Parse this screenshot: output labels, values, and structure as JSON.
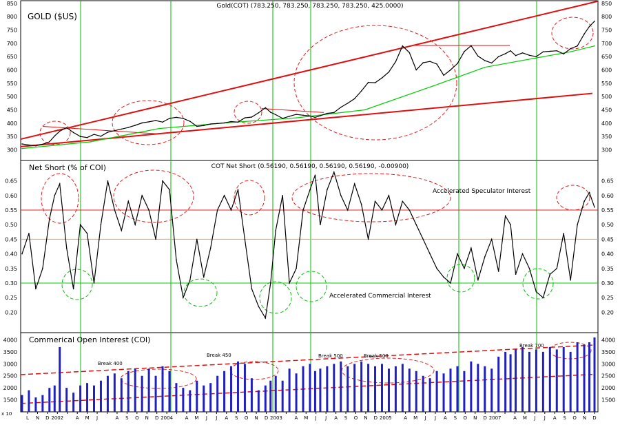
{
  "chart_data": [
    {
      "type": "line",
      "panel": "gold",
      "header": "Gold(COT) (783.250, 783.250, 783.250, 783.250, 425.0000)",
      "title": "GOLD ($US)",
      "ylim": [
        260,
        860
      ],
      "yticks": [
        300,
        350,
        400,
        450,
        500,
        550,
        600,
        650,
        700,
        750,
        800,
        850
      ],
      "series": [
        {
          "name": "",
          "color": "#000000",
          "x": [
            0,
            4,
            8,
            12,
            16,
            19,
            22,
            26,
            30,
            34,
            38,
            42,
            46,
            50,
            54,
            58,
            62,
            66,
            70,
            74,
            78,
            82,
            86,
            90,
            94,
            98,
            102,
            106,
            110,
            114,
            118,
            122,
            126,
            130,
            134,
            138,
            142,
            145,
            148,
            152,
            156,
            160,
            164,
            168,
            171,
            174,
            178,
            182,
            186,
            190,
            194,
            198,
            202,
            206,
            210,
            214,
            218,
            222,
            226,
            230,
            234,
            238,
            242,
            246,
            250,
            254,
            258,
            262,
            266,
            270,
            274,
            278,
            282,
            285,
            288,
            292,
            296,
            300,
            304,
            308,
            312,
            316,
            320,
            324,
            328,
            331,
            334
          ],
          "values": [
            322,
            318,
            315,
            321,
            330,
            352,
            370,
            383,
            365,
            350,
            346,
            358,
            351,
            366,
            372,
            378,
            384,
            392,
            401,
            405,
            410,
            404,
            418,
            422,
            418,
            407,
            388,
            391,
            397,
            399,
            401,
            406,
            404,
            420,
            423,
            439,
            458,
            441,
            432,
            418,
            426,
            433,
            430,
            427,
            422,
            428,
            437,
            440,
            460,
            475,
            492,
            521,
            553,
            552,
            570,
            592,
            631,
            690,
            665,
            600,
            627,
            632,
            622,
            580,
            600,
            624,
            669,
            691,
            652,
            635,
            626,
            650,
            661,
            672,
            654,
            664,
            655,
            650,
            668,
            670,
            672,
            660,
            680,
            690,
            735,
            763,
            783
          ]
        },
        {
          "name": "",
          "color": "#00cc00",
          "x": [
            0,
            40,
            80,
            120,
            160,
            200,
            240,
            270,
            300,
            320,
            334
          ],
          "values": [
            305,
            330,
            380,
            402,
            420,
            450,
            540,
            610,
            645,
            668,
            690
          ]
        }
      ]
    },
    {
      "type": "line",
      "panel": "net-short",
      "header": "COT Net Short (0.56190, 0.56190, 0.56190, 0.56190, -0.00900)",
      "title": "Net Short (% of COI)",
      "ylim": [
        0.13,
        0.72
      ],
      "yticks": [
        0.2,
        0.25,
        0.3,
        0.35,
        0.4,
        0.45,
        0.5,
        0.55,
        0.6,
        0.65
      ],
      "annotations": [
        "Accelerated Speculator Interest",
        "Accelerated Commercial Interest"
      ],
      "series": [
        {
          "name": "",
          "color": "#000000",
          "x": [
            0,
            4,
            8,
            12,
            16,
            19,
            22,
            26,
            30,
            34,
            38,
            42,
            46,
            50,
            54,
            58,
            62,
            66,
            70,
            74,
            78,
            82,
            86,
            90,
            94,
            98,
            102,
            106,
            110,
            114,
            118,
            122,
            126,
            130,
            134,
            138,
            142,
            145,
            148,
            152,
            156,
            160,
            164,
            168,
            171,
            174,
            178,
            182,
            186,
            190,
            194,
            198,
            202,
            206,
            210,
            214,
            218,
            222,
            226,
            230,
            234,
            238,
            242,
            246,
            250,
            254,
            258,
            262,
            266,
            270,
            274,
            278,
            282,
            285,
            288,
            292,
            296,
            300,
            304,
            308,
            312,
            316,
            320,
            324,
            328,
            331,
            334
          ],
          "values": [
            0.4,
            0.47,
            0.28,
            0.35,
            0.52,
            0.6,
            0.64,
            0.42,
            0.28,
            0.5,
            0.47,
            0.3,
            0.5,
            0.65,
            0.55,
            0.48,
            0.58,
            0.5,
            0.6,
            0.55,
            0.45,
            0.65,
            0.62,
            0.38,
            0.25,
            0.31,
            0.45,
            0.32,
            0.42,
            0.55,
            0.6,
            0.55,
            0.62,
            0.45,
            0.28,
            0.22,
            0.18,
            0.3,
            0.48,
            0.6,
            0.3,
            0.35,
            0.55,
            0.62,
            0.67,
            0.5,
            0.62,
            0.68,
            0.6,
            0.55,
            0.64,
            0.57,
            0.45,
            0.58,
            0.55,
            0.6,
            0.5,
            0.58,
            0.55,
            0.5,
            0.45,
            0.4,
            0.35,
            0.32,
            0.3,
            0.4,
            0.35,
            0.42,
            0.31,
            0.39,
            0.45,
            0.34,
            0.53,
            0.5,
            0.33,
            0.4,
            0.35,
            0.27,
            0.25,
            0.33,
            0.35,
            0.47,
            0.31,
            0.5,
            0.58,
            0.61,
            0.56
          ]
        }
      ],
      "reference_lines": [
        {
          "value": 0.55,
          "color": "#e82020"
        },
        {
          "value": 0.45,
          "color": "#f0a040"
        },
        {
          "value": 0.3,
          "color": "#00cc00"
        }
      ]
    },
    {
      "type": "bar",
      "panel": "coi",
      "title": "Commerical Open Interest (COI)",
      "ylim": [
        1000,
        4300
      ],
      "yticks": [
        1500,
        2000,
        2500,
        3000,
        3500,
        4000
      ],
      "annotations": [
        "Break 400",
        "Break 450",
        "Break 500",
        "Break 500",
        "Break 700"
      ],
      "series": [
        {
          "name": "",
          "color": "#2020c0",
          "x": [
            0,
            4,
            8,
            12,
            16,
            19,
            22,
            26,
            30,
            34,
            38,
            42,
            46,
            50,
            54,
            58,
            62,
            66,
            70,
            74,
            78,
            82,
            86,
            90,
            94,
            98,
            102,
            106,
            110,
            114,
            118,
            122,
            126,
            130,
            134,
            138,
            142,
            145,
            148,
            152,
            156,
            160,
            164,
            168,
            171,
            174,
            178,
            182,
            186,
            190,
            194,
            198,
            202,
            206,
            210,
            214,
            218,
            222,
            226,
            230,
            234,
            238,
            242,
            246,
            250,
            254,
            258,
            262,
            266,
            270,
            274,
            278,
            282,
            285,
            288,
            292,
            296,
            300,
            304,
            308,
            312,
            316,
            320,
            324,
            328,
            331,
            334
          ],
          "values": [
            1700,
            1900,
            1600,
            1700,
            2000,
            2100,
            3700,
            2000,
            1800,
            2100,
            2200,
            2100,
            2300,
            2500,
            2600,
            2400,
            2700,
            2800,
            2500,
            2800,
            2500,
            2900,
            2700,
            2200,
            2000,
            1900,
            2300,
            2100,
            2200,
            2500,
            2700,
            2900,
            3100,
            3000,
            2400,
            1900,
            2100,
            2300,
            2500,
            2300,
            2800,
            2600,
            2900,
            3000,
            2700,
            2800,
            2900,
            3000,
            3100,
            2900,
            3000,
            3100,
            3000,
            2900,
            3000,
            2800,
            2900,
            3000,
            2800,
            2700,
            2500,
            2400,
            2700,
            2600,
            2800,
            2900,
            2700,
            3100,
            3000,
            2900,
            2800,
            3300,
            3500,
            3400,
            3600,
            3700,
            3500,
            3600,
            3500,
            3700,
            3600,
            3700,
            3500,
            3900,
            3800,
            3900,
            4100
          ]
        }
      ]
    }
  ],
  "x_ticks": [
    "L",
    "N",
    "D",
    "2002",
    "",
    "A",
    "M",
    "J",
    "",
    "A",
    "S",
    "O",
    "N",
    "D",
    "2004",
    "",
    "A",
    "M",
    "J",
    "J",
    "A",
    "S",
    "O",
    "N",
    "D",
    "2003",
    "",
    "A",
    "M",
    "J",
    "J",
    "A",
    "S",
    "O",
    "N",
    "D",
    "2005",
    "",
    "A",
    "M",
    "J",
    "J",
    "A",
    "S",
    "O",
    "N",
    "D",
    "2007",
    "",
    "A",
    "M",
    "J",
    "J",
    "A",
    "S",
    "O",
    "N",
    "D"
  ],
  "corner_label": "x 10"
}
